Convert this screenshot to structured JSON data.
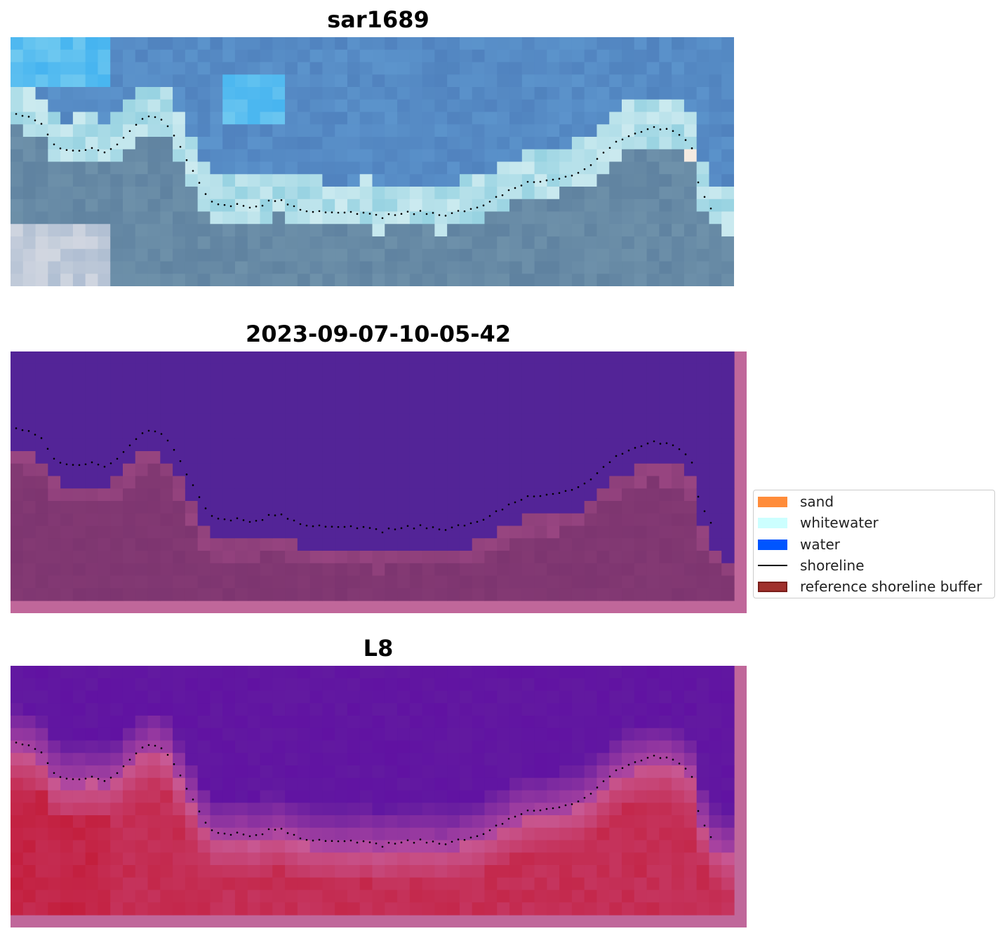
{
  "panels": [
    {
      "title": "sar1689",
      "kind": "rgb"
    },
    {
      "title": "2023-09-07-10-05-42",
      "kind": "classification"
    },
    {
      "title": "L8",
      "kind": "index"
    }
  ],
  "legend": {
    "items": [
      {
        "label": "sand",
        "color": "#ff8c3a",
        "type": "patch"
      },
      {
        "label": "whitewater",
        "color": "#ccffff",
        "type": "patch"
      },
      {
        "label": "water",
        "color": "#0055ff",
        "type": "patch"
      },
      {
        "label": "shoreline",
        "color": "#000000",
        "type": "line"
      },
      {
        "label": "reference shoreline buffer",
        "color": "#a0302c",
        "type": "patch"
      }
    ]
  },
  "colors": {
    "classification_water": "#532497",
    "classification_buffer": "#7d3570",
    "buffer_edge": "#c0679a",
    "index_water": "#621aa0",
    "index_land": "#c5355f",
    "shoreline_dots": "#000000"
  }
}
